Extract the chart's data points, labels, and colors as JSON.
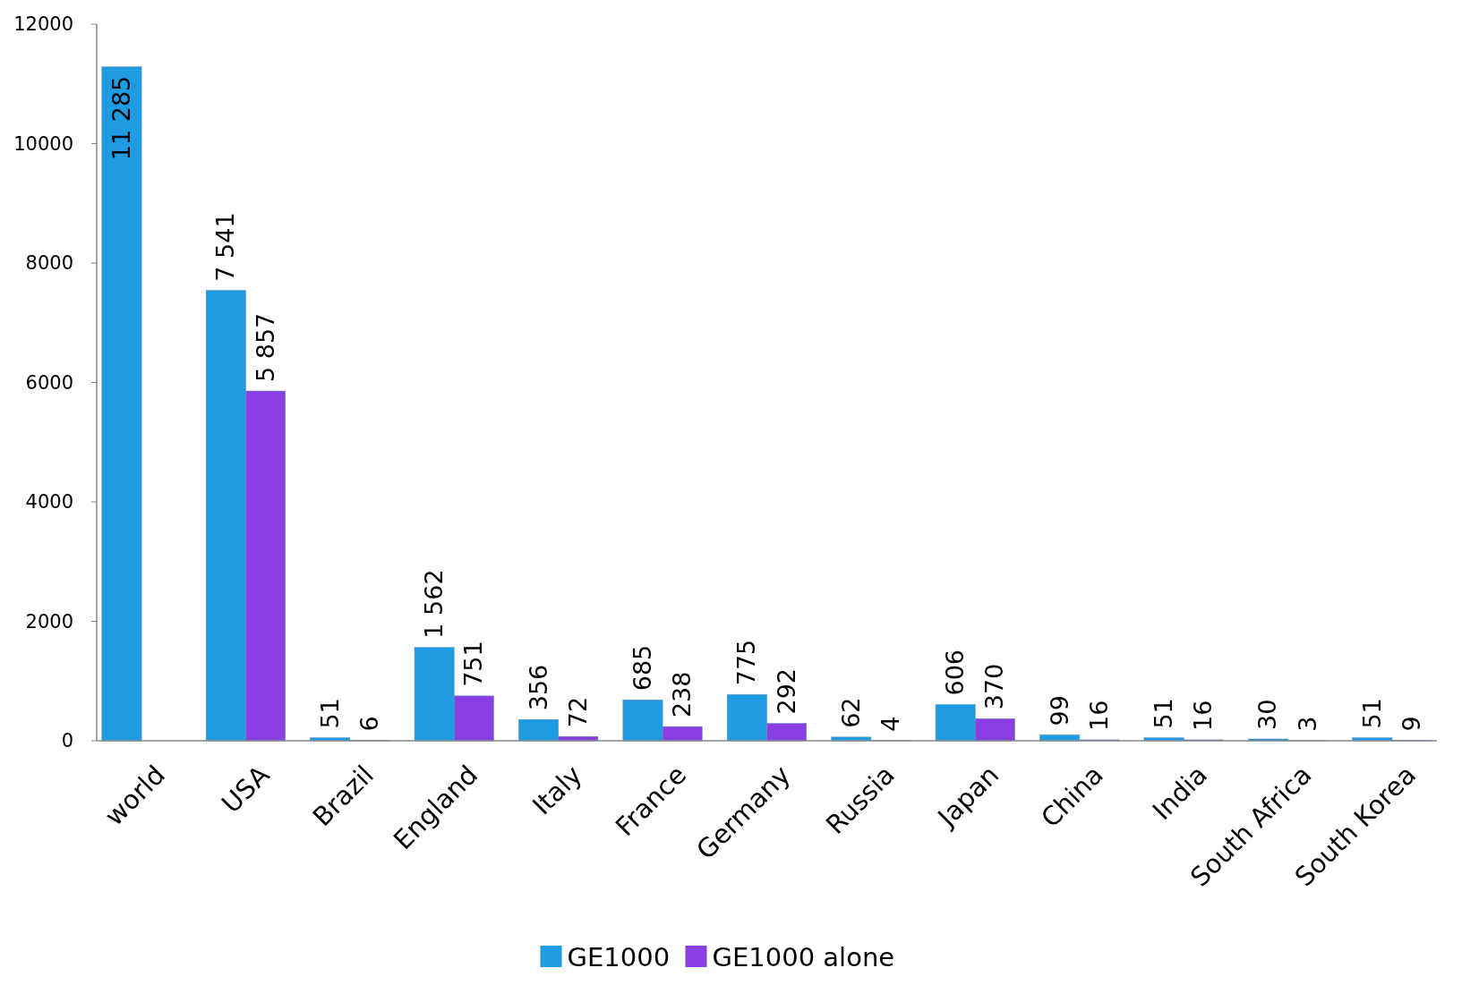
{
  "chart_data": {
    "type": "bar",
    "categories": [
      "world",
      "USA",
      "Brazil",
      "England",
      "Italy",
      "France",
      "Germany",
      "Russia",
      "Japan",
      "China",
      "India",
      "South Africa",
      "South Korea"
    ],
    "series": [
      {
        "name": "GE1000",
        "color": "#1e9be2",
        "values": [
          11285,
          7541,
          51,
          1562,
          356,
          685,
          775,
          62,
          606,
          99,
          51,
          30,
          51
        ],
        "value_labels": [
          "11 285",
          "7 541",
          "51",
          "1 562",
          "356",
          "685",
          "775",
          "62",
          "606",
          "99",
          "51",
          "30",
          "51"
        ]
      },
      {
        "name": "GE1000 alone",
        "color": "#8a3fe2",
        "values": [
          null,
          5857,
          6,
          751,
          72,
          238,
          292,
          4,
          370,
          16,
          16,
          3,
          9
        ],
        "value_labels": [
          null,
          "5 857",
          "6",
          "751",
          "72",
          "238",
          "292",
          "4",
          "370",
          "16",
          "16",
          "3",
          "9"
        ]
      }
    ],
    "ylim": [
      0,
      12000
    ],
    "yticks": [
      0,
      2000,
      4000,
      6000,
      8000,
      10000,
      12000
    ],
    "grid": false,
    "legend": "bottom"
  }
}
